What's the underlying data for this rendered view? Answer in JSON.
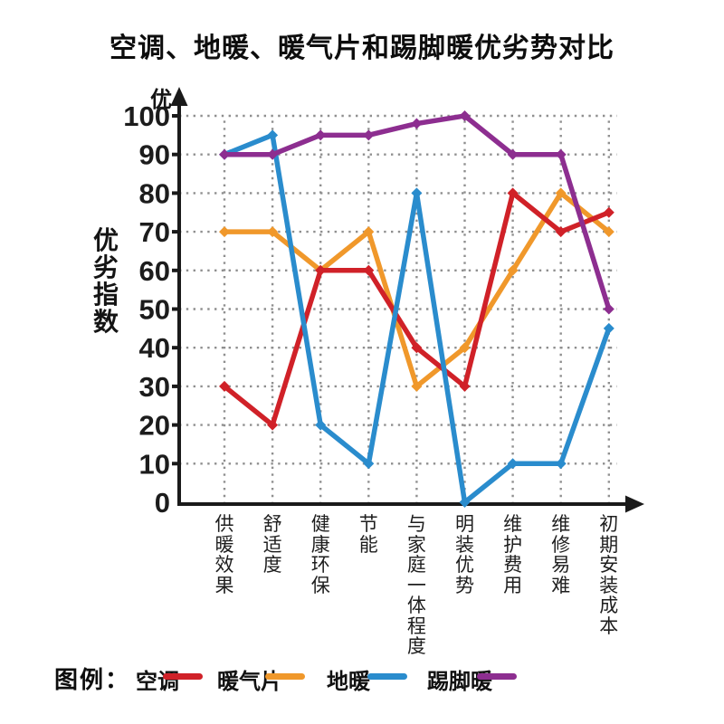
{
  "title": "空调、地暖、暖气片和踢脚暖优劣势对比",
  "y_axis": {
    "unit_label": "优",
    "axis_label": "优劣指数",
    "ticks": [
      0,
      10,
      20,
      30,
      40,
      50,
      60,
      70,
      80,
      90,
      100
    ]
  },
  "legend": {
    "label": "图例：",
    "items": [
      {
        "name": "空调",
        "color": "#d02128"
      },
      {
        "name": "暖气片",
        "color": "#f0982b"
      },
      {
        "name": "地暖",
        "color": "#2a8ccd"
      },
      {
        "name": "踢脚暖",
        "color": "#8d2e90"
      }
    ]
  },
  "chart_data": {
    "type": "line",
    "title": "空调、地暖、暖气片和踢脚暖优劣势对比",
    "categories": [
      "供暖效果",
      "舒适度",
      "健康环保",
      "节能",
      "与家庭一体程度",
      "明装优势",
      "维护费用",
      "维修易难",
      "初期安装成本"
    ],
    "series": [
      {
        "name": "空调",
        "color": "#d02128",
        "values": [
          30,
          20,
          60,
          60,
          40,
          30,
          80,
          70,
          75
        ]
      },
      {
        "name": "暖气片",
        "color": "#f0982b",
        "values": [
          70,
          70,
          60,
          70,
          30,
          40,
          60,
          80,
          70
        ]
      },
      {
        "name": "地暖",
        "color": "#2a8ccd",
        "values": [
          90,
          95,
          20,
          10,
          80,
          0,
          10,
          10,
          45
        ]
      },
      {
        "name": "踢脚暖",
        "color": "#8d2e90",
        "values": [
          90,
          90,
          95,
          95,
          98,
          100,
          90,
          90,
          50
        ]
      }
    ],
    "xlabel": "",
    "ylabel": "优劣指数",
    "y_unit_label": "优",
    "ylim": [
      0,
      100
    ],
    "ytick_step": 10,
    "grid": true,
    "grid_style": "dotted",
    "legend_position": "bottom",
    "axis_color": "#1a1a1a",
    "grid_color": "#8f8f8f"
  }
}
